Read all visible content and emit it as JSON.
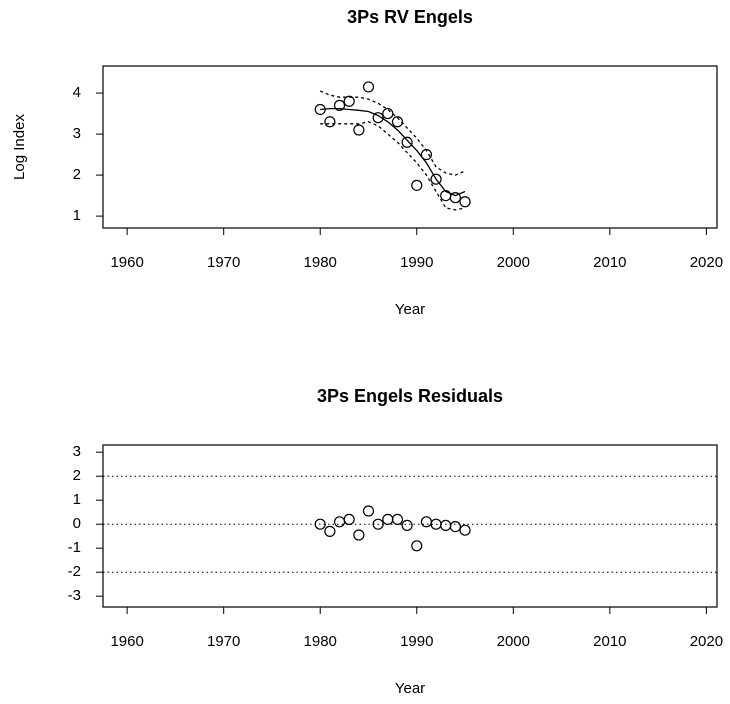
{
  "chart_data": [
    {
      "type": "scatter",
      "title": "3Ps RV Engels",
      "xlabel": "Year",
      "ylabel": "Log Index",
      "x": [
        1980,
        1981,
        1982,
        1983,
        1984,
        1985,
        1986,
        1987,
        1988,
        1989,
        1990,
        1991,
        1992,
        1993,
        1994,
        1995
      ],
      "series": [
        {
          "style": "points",
          "color": "#000000",
          "values": [
            3.6,
            3.3,
            3.7,
            3.8,
            3.1,
            4.15,
            3.4,
            3.5,
            3.3,
            2.8,
            1.75,
            2.5,
            1.9,
            1.5,
            1.45,
            1.35
          ]
        },
        {
          "style": "solid",
          "color": "#000000",
          "values": [
            3.6,
            3.62,
            3.62,
            3.6,
            3.58,
            3.55,
            3.45,
            3.3,
            3.1,
            2.85,
            2.6,
            2.3,
            1.9,
            1.6,
            1.5,
            1.6
          ]
        },
        {
          "style": "dashed",
          "color": "#000000",
          "values": [
            4.05,
            3.95,
            3.9,
            3.9,
            3.9,
            3.85,
            3.75,
            3.6,
            3.4,
            3.15,
            2.9,
            2.6,
            2.2,
            2.05,
            2.0,
            2.1
          ]
        },
        {
          "style": "dashed",
          "color": "#000000",
          "values": [
            3.25,
            3.25,
            3.25,
            3.25,
            3.25,
            3.3,
            3.2,
            3.0,
            2.8,
            2.55,
            2.3,
            2.0,
            1.6,
            1.2,
            1.15,
            1.2
          ]
        }
      ],
      "xlim": [
        1957.5,
        2021.1
      ],
      "xticks": [
        1960,
        1970,
        1980,
        1990,
        2000,
        2010,
        2020
      ],
      "ylim": [
        0.71,
        4.66
      ],
      "yticks": [
        1,
        2,
        3,
        4
      ]
    },
    {
      "type": "scatter",
      "title": "3Ps Engels Residuals",
      "xlabel": "Year",
      "x": [
        1980,
        1981,
        1982,
        1983,
        1984,
        1985,
        1986,
        1987,
        1988,
        1989,
        1990,
        1991,
        1992,
        1993,
        1994,
        1995
      ],
      "series": [
        {
          "style": "points",
          "color": "#000000",
          "values": [
            0,
            -0.3,
            0.1,
            0.2,
            -0.45,
            0.55,
            0,
            0.2,
            0.2,
            -0.05,
            -0.9,
            0.1,
            0,
            -0.05,
            -0.1,
            -0.25
          ]
        }
      ],
      "hlines": [
        -2,
        0,
        2
      ],
      "xlim": [
        1957.5,
        2021.1
      ],
      "xticks": [
        1960,
        1970,
        1980,
        1990,
        2000,
        2010,
        2020
      ],
      "ylim": [
        -3.45,
        3.3
      ],
      "yticks": [
        -3,
        -2,
        -1,
        0,
        1,
        2,
        3
      ]
    }
  ]
}
